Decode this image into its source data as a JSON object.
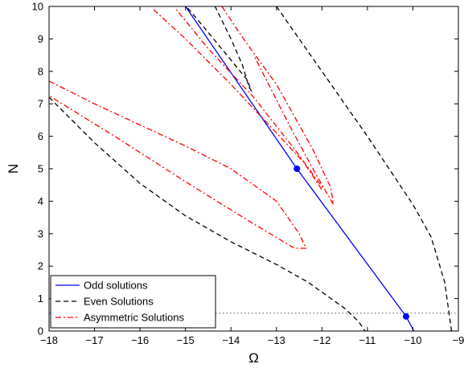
{
  "chart_data": {
    "type": "line",
    "xlabel": "Ω",
    "ylabel": "N",
    "xlim": [
      -18,
      -9
    ],
    "ylim": [
      0,
      10
    ],
    "x_ticks": [
      "−18",
      "−17",
      "−16",
      "−15",
      "−14",
      "−13",
      "−12",
      "−11",
      "−10",
      "−9"
    ],
    "y_ticks": [
      "0",
      "1",
      "2",
      "3",
      "4",
      "5",
      "6",
      "7",
      "8",
      "9",
      "10"
    ],
    "grid": false,
    "legend_position": "bottom-left",
    "legend": [
      {
        "label": "Odd solutions",
        "color": "#0000ff",
        "style": "solid"
      },
      {
        "label": "Even Solutions",
        "color": "#000000",
        "style": "dashed"
      },
      {
        "label": "Asymmetric Solutions",
        "color": "#ff0000",
        "style": "dashdot"
      }
    ],
    "series": [
      {
        "name": "Odd solutions",
        "color": "#0000ff",
        "style": "solid",
        "x": [
          -15.0,
          -12.55,
          -10.15,
          -9.98
        ],
        "y": [
          10.0,
          5.0,
          0.45,
          0.0
        ]
      },
      {
        "color": "#000000",
        "style": "dashed",
        "x": [
          -18.0,
          -17.0,
          -16.0,
          -15.0,
          -14.0,
          -13.0,
          -12.3,
          -11.8,
          -11.5,
          -11.2,
          -11.05
        ],
        "y": [
          7.2,
          5.8,
          4.55,
          3.55,
          2.75,
          2.05,
          1.5,
          1.0,
          0.7,
          0.3,
          0.0
        ]
      },
      {
        "color": "#000000",
        "style": "dashed",
        "x": [
          -14.95,
          -14.5,
          -14.0,
          -13.65,
          -13.55,
          -13.6,
          -13.75,
          -14.0,
          -14.35
        ],
        "y": [
          9.95,
          9.2,
          8.35,
          7.75,
          7.4,
          7.5,
          8.2,
          9.0,
          10.0
        ]
      },
      {
        "color": "#000000",
        "style": "dashed",
        "x": [
          -13.0,
          -12.0,
          -11.0,
          -10.0,
          -9.6,
          -9.3,
          -9.15
        ],
        "y": [
          10.0,
          8.0,
          6.0,
          3.9,
          2.9,
          1.5,
          0.0
        ]
      },
      {
        "color": "#ff0000",
        "style": "dashdot",
        "x": [
          -18.0,
          -17.0,
          -16.0,
          -15.0,
          -14.0,
          -13.0,
          -12.5,
          -12.35,
          -12.6,
          -13.5,
          -15.0,
          -16.5,
          -18.0
        ],
        "y": [
          7.7,
          7.0,
          6.35,
          5.7,
          5.0,
          4.0,
          3.0,
          2.55,
          2.55,
          3.3,
          4.6,
          5.95,
          7.25
        ]
      },
      {
        "color": "#ff0000",
        "style": "dashdot",
        "x": [
          -15.7,
          -15.0,
          -14.0,
          -13.0,
          -12.4,
          -12.0,
          -12.0,
          -12.6,
          -13.5,
          -14.5,
          -15.2
        ],
        "y": [
          9.9,
          9.0,
          7.6,
          6.1,
          5.2,
          4.35,
          4.45,
          5.6,
          7.2,
          8.7,
          9.9
        ]
      },
      {
        "color": "#ff0000",
        "style": "dashdot",
        "x": [
          -14.2,
          -13.7,
          -13.0,
          -12.2,
          -11.8,
          -11.75,
          -12.2,
          -12.7,
          -13.5
        ],
        "y": [
          10.0,
          8.95,
          7.6,
          5.6,
          4.4,
          3.9,
          5.0,
          6.3,
          8.5
        ]
      }
    ],
    "markers": [
      {
        "x": -12.55,
        "y": 5.0,
        "color": "#0000ff"
      },
      {
        "x": -10.15,
        "y": 0.45,
        "color": "#0000ff"
      }
    ],
    "reference_line": {
      "y": 0.55,
      "color": "#555555",
      "style": "dotted"
    }
  }
}
